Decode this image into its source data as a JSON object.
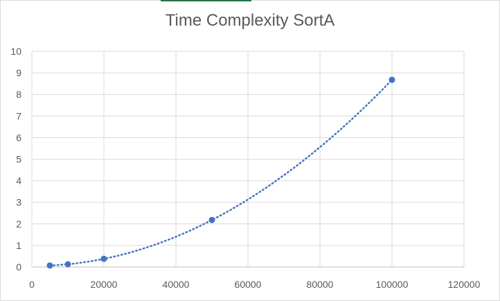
{
  "chart_data": {
    "type": "scatter",
    "title": "Time Complexity SortA",
    "xlabel": "",
    "ylabel": "",
    "xlim": [
      0,
      120000
    ],
    "ylim": [
      0,
      10
    ],
    "x_ticks": [
      "0",
      "20000",
      "40000",
      "60000",
      "80000",
      "100000",
      "120000"
    ],
    "y_ticks": [
      "0",
      "1",
      "2",
      "3",
      "4",
      "5",
      "6",
      "7",
      "8",
      "9",
      "10"
    ],
    "grid": true,
    "legend": "none",
    "series": [
      {
        "points": [
          {
            "x": 5000,
            "y": 0.07
          },
          {
            "x": 10000,
            "y": 0.13
          },
          {
            "x": 20000,
            "y": 0.38
          },
          {
            "x": 50000,
            "y": 2.18
          },
          {
            "x": 100000,
            "y": 8.68
          }
        ],
        "color": "#4472c4",
        "trendline": "polynomial, order 2, dotted"
      }
    ]
  }
}
